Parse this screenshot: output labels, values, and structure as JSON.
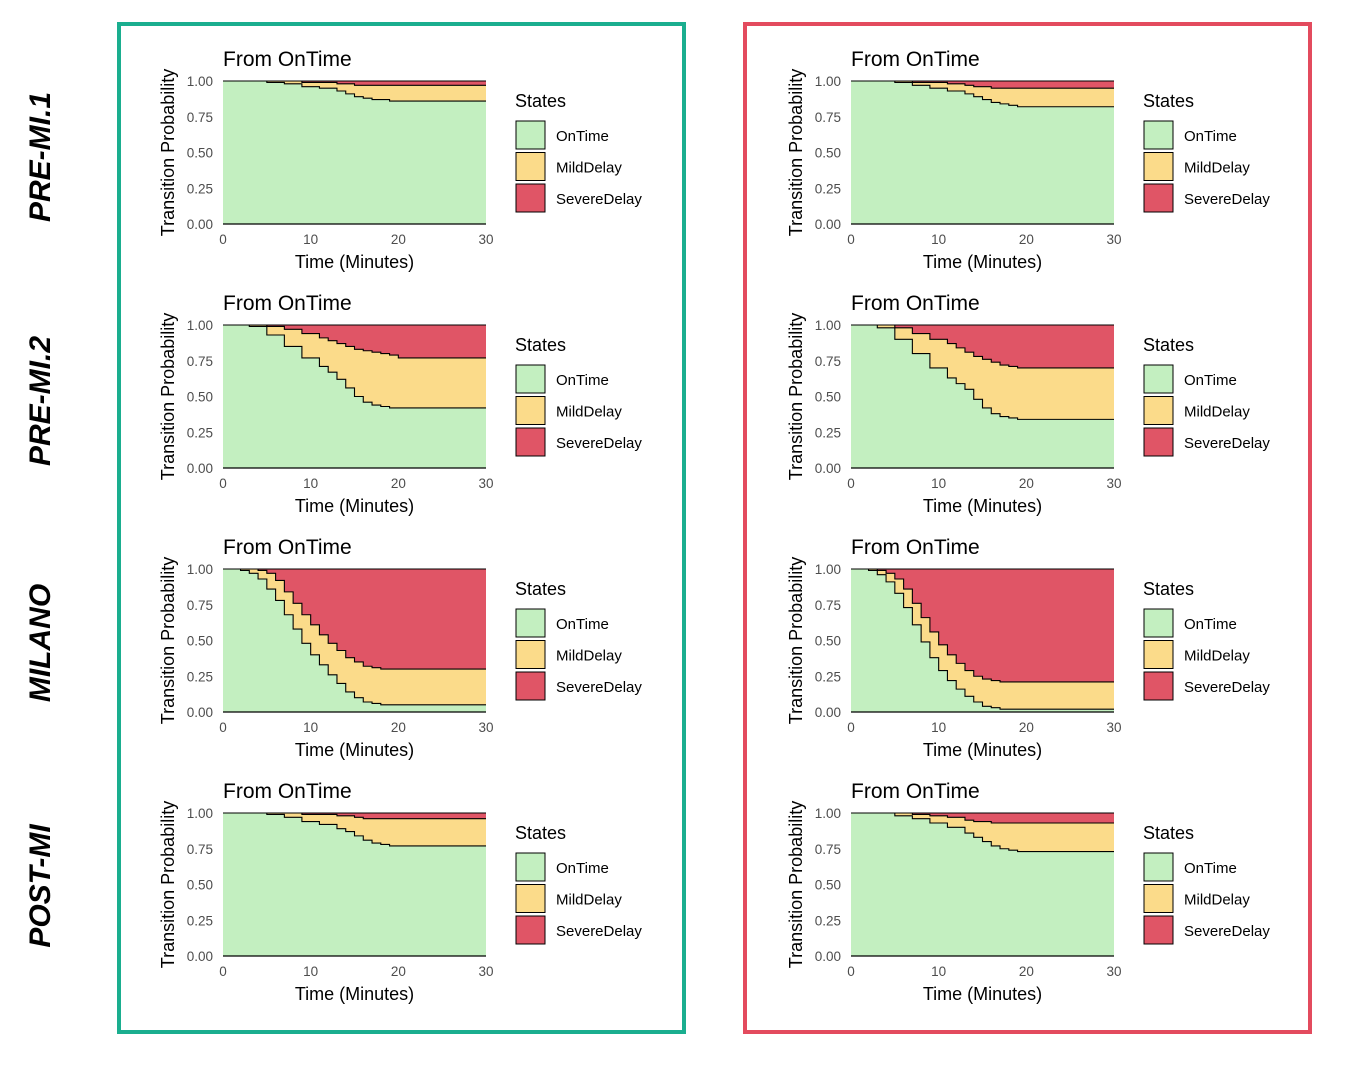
{
  "colors": {
    "OnTime": "#c3efc0",
    "MildDelay": "#fbdb8a",
    "SevereDelay": "#e05566",
    "left_frame": "#1aae8f",
    "right_frame": "#e34b5e"
  },
  "row_labels": [
    "PRE-MI.1",
    "PRE-MI.2",
    "MILANO",
    "POST-MI"
  ],
  "chart_data": [
    {
      "type": "area",
      "panel": "left-1",
      "title": "From OnTime",
      "xlabel": "Time (Minutes)",
      "ylabel": "Transition Probability",
      "xlim": [
        0,
        30
      ],
      "ylim": [
        0,
        1
      ],
      "xticks": [
        "0",
        "10",
        "20",
        "30"
      ],
      "yticks": [
        "0.00",
        "0.25",
        "0.50",
        "0.75",
        "1.00"
      ],
      "legend_title": "States",
      "legend_position": "right",
      "x": [
        0,
        3,
        5,
        7,
        9,
        11,
        13,
        14,
        15,
        16,
        17,
        18,
        19,
        20,
        25,
        30
      ],
      "series": [
        {
          "name": "OnTime",
          "values": [
            1.0,
            1.0,
            0.99,
            0.98,
            0.96,
            0.95,
            0.93,
            0.91,
            0.89,
            0.88,
            0.87,
            0.87,
            0.86,
            0.86,
            0.86,
            0.86
          ]
        },
        {
          "name": "MildDelay",
          "values": [
            0.0,
            0.0,
            0.01,
            0.02,
            0.03,
            0.04,
            0.05,
            0.07,
            0.08,
            0.09,
            0.1,
            0.1,
            0.11,
            0.11,
            0.11,
            0.11
          ]
        },
        {
          "name": "SevereDelay",
          "values": [
            0.0,
            0.0,
            0.0,
            0.0,
            0.01,
            0.01,
            0.02,
            0.02,
            0.03,
            0.03,
            0.03,
            0.03,
            0.03,
            0.03,
            0.03,
            0.03
          ]
        }
      ]
    },
    {
      "type": "area",
      "panel": "right-1",
      "title": "From OnTime",
      "xlabel": "Time (Minutes)",
      "ylabel": "Transition Probability",
      "xlim": [
        0,
        30
      ],
      "ylim": [
        0,
        1
      ],
      "xticks": [
        "0",
        "10",
        "20",
        "30"
      ],
      "yticks": [
        "0.00",
        "0.25",
        "0.50",
        "0.75",
        "1.00"
      ],
      "legend_title": "States",
      "legend_position": "right",
      "x": [
        0,
        3,
        5,
        7,
        9,
        11,
        13,
        14,
        15,
        16,
        17,
        18,
        19,
        20,
        25,
        30
      ],
      "series": [
        {
          "name": "OnTime",
          "values": [
            1.0,
            1.0,
            0.99,
            0.97,
            0.95,
            0.93,
            0.91,
            0.89,
            0.87,
            0.85,
            0.84,
            0.83,
            0.82,
            0.82,
            0.82,
            0.82
          ]
        },
        {
          "name": "MildDelay",
          "values": [
            0.0,
            0.0,
            0.01,
            0.02,
            0.04,
            0.05,
            0.06,
            0.07,
            0.09,
            0.1,
            0.11,
            0.12,
            0.13,
            0.13,
            0.13,
            0.13
          ]
        },
        {
          "name": "SevereDelay",
          "values": [
            0.0,
            0.0,
            0.0,
            0.01,
            0.01,
            0.02,
            0.03,
            0.04,
            0.04,
            0.05,
            0.05,
            0.05,
            0.05,
            0.05,
            0.05,
            0.05
          ]
        }
      ]
    },
    {
      "type": "area",
      "panel": "left-2",
      "title": "From OnTime",
      "xlabel": "Time (Minutes)",
      "ylabel": "Transition Probability",
      "xlim": [
        0,
        30
      ],
      "ylim": [
        0,
        1
      ],
      "xticks": [
        "0",
        "10",
        "20",
        "30"
      ],
      "yticks": [
        "0.00",
        "0.25",
        "0.50",
        "0.75",
        "1.00"
      ],
      "legend_title": "States",
      "legend_position": "right",
      "x": [
        0,
        3,
        5,
        7,
        9,
        11,
        12,
        13,
        14,
        15,
        16,
        17,
        18,
        19,
        20,
        25,
        30
      ],
      "series": [
        {
          "name": "OnTime",
          "values": [
            1.0,
            0.99,
            0.93,
            0.85,
            0.77,
            0.71,
            0.67,
            0.62,
            0.56,
            0.5,
            0.46,
            0.44,
            0.43,
            0.42,
            0.42,
            0.42,
            0.42
          ]
        },
        {
          "name": "MildDelay",
          "values": [
            0.0,
            0.01,
            0.06,
            0.12,
            0.17,
            0.2,
            0.22,
            0.25,
            0.29,
            0.33,
            0.36,
            0.37,
            0.37,
            0.37,
            0.35,
            0.35,
            0.35
          ]
        },
        {
          "name": "SevereDelay",
          "values": [
            0.0,
            0.0,
            0.01,
            0.03,
            0.06,
            0.09,
            0.11,
            0.13,
            0.15,
            0.17,
            0.18,
            0.19,
            0.2,
            0.21,
            0.23,
            0.23,
            0.23
          ]
        }
      ]
    },
    {
      "type": "area",
      "panel": "right-2",
      "title": "From OnTime",
      "xlabel": "Time (Minutes)",
      "ylabel": "Transition Probability",
      "xlim": [
        0,
        30
      ],
      "ylim": [
        0,
        1
      ],
      "xticks": [
        "0",
        "10",
        "20",
        "30"
      ],
      "yticks": [
        "0.00",
        "0.25",
        "0.50",
        "0.75",
        "1.00"
      ],
      "legend_title": "States",
      "legend_position": "right",
      "x": [
        0,
        3,
        5,
        7,
        9,
        11,
        12,
        13,
        14,
        15,
        16,
        17,
        18,
        19,
        20,
        25,
        30
      ],
      "series": [
        {
          "name": "OnTime",
          "values": [
            1.0,
            0.98,
            0.9,
            0.8,
            0.7,
            0.63,
            0.59,
            0.55,
            0.48,
            0.42,
            0.38,
            0.36,
            0.35,
            0.34,
            0.34,
            0.34,
            0.34
          ]
        },
        {
          "name": "MildDelay",
          "values": [
            0.0,
            0.02,
            0.08,
            0.14,
            0.2,
            0.24,
            0.25,
            0.26,
            0.3,
            0.34,
            0.36,
            0.36,
            0.36,
            0.36,
            0.36,
            0.36,
            0.36
          ]
        },
        {
          "name": "SevereDelay",
          "values": [
            0.0,
            0.0,
            0.02,
            0.06,
            0.1,
            0.13,
            0.16,
            0.19,
            0.22,
            0.24,
            0.26,
            0.28,
            0.29,
            0.3,
            0.3,
            0.3,
            0.3
          ]
        }
      ]
    },
    {
      "type": "area",
      "panel": "left-3",
      "title": "From OnTime",
      "xlabel": "Time (Minutes)",
      "ylabel": "Transition Probability",
      "xlim": [
        0,
        30
      ],
      "ylim": [
        0,
        1
      ],
      "xticks": [
        "0",
        "10",
        "20",
        "30"
      ],
      "yticks": [
        "0.00",
        "0.25",
        "0.50",
        "0.75",
        "1.00"
      ],
      "legend_title": "States",
      "legend_position": "right",
      "x": [
        0,
        2,
        3,
        4,
        5,
        6,
        7,
        8,
        9,
        10,
        11,
        12,
        13,
        14,
        15,
        16,
        17,
        18,
        20,
        25,
        30
      ],
      "series": [
        {
          "name": "OnTime",
          "values": [
            1.0,
            0.99,
            0.97,
            0.93,
            0.86,
            0.78,
            0.68,
            0.58,
            0.48,
            0.4,
            0.33,
            0.26,
            0.2,
            0.14,
            0.1,
            0.07,
            0.06,
            0.05,
            0.05,
            0.05,
            0.05
          ]
        },
        {
          "name": "MildDelay",
          "values": [
            0.0,
            0.01,
            0.03,
            0.06,
            0.11,
            0.14,
            0.16,
            0.18,
            0.2,
            0.21,
            0.21,
            0.22,
            0.23,
            0.24,
            0.25,
            0.25,
            0.25,
            0.25,
            0.25,
            0.25,
            0.25
          ]
        },
        {
          "name": "SevereDelay",
          "values": [
            0.0,
            0.0,
            0.0,
            0.01,
            0.03,
            0.08,
            0.16,
            0.24,
            0.32,
            0.39,
            0.46,
            0.52,
            0.57,
            0.62,
            0.65,
            0.68,
            0.69,
            0.7,
            0.7,
            0.7,
            0.7
          ]
        }
      ]
    },
    {
      "type": "area",
      "panel": "right-3",
      "title": "From OnTime",
      "xlabel": "Time (Minutes)",
      "ylabel": "Transition Probability",
      "xlim": [
        0,
        30
      ],
      "ylim": [
        0,
        1
      ],
      "xticks": [
        "0",
        "10",
        "20",
        "30"
      ],
      "yticks": [
        "0.00",
        "0.25",
        "0.50",
        "0.75",
        "1.00"
      ],
      "legend_title": "States",
      "legend_position": "right",
      "x": [
        0,
        2,
        3,
        4,
        5,
        6,
        7,
        8,
        9,
        10,
        11,
        12,
        13,
        14,
        15,
        16,
        17,
        18,
        19,
        20,
        25,
        30
      ],
      "series": [
        {
          "name": "OnTime",
          "values": [
            1.0,
            0.99,
            0.96,
            0.91,
            0.83,
            0.73,
            0.61,
            0.49,
            0.38,
            0.29,
            0.22,
            0.16,
            0.11,
            0.07,
            0.04,
            0.03,
            0.02,
            0.02,
            0.02,
            0.02,
            0.02,
            0.02
          ]
        },
        {
          "name": "MildDelay",
          "values": [
            0.0,
            0.01,
            0.03,
            0.06,
            0.1,
            0.13,
            0.15,
            0.17,
            0.18,
            0.18,
            0.18,
            0.18,
            0.18,
            0.18,
            0.19,
            0.19,
            0.19,
            0.19,
            0.19,
            0.19,
            0.19,
            0.19
          ]
        },
        {
          "name": "SevereDelay",
          "values": [
            0.0,
            0.0,
            0.01,
            0.03,
            0.07,
            0.14,
            0.24,
            0.34,
            0.44,
            0.53,
            0.6,
            0.66,
            0.71,
            0.75,
            0.77,
            0.78,
            0.79,
            0.79,
            0.79,
            0.79,
            0.79,
            0.79
          ]
        }
      ]
    },
    {
      "type": "area",
      "panel": "left-4",
      "title": "From OnTime",
      "xlabel": "Time (Minutes)",
      "ylabel": "Transition Probability",
      "xlim": [
        0,
        30
      ],
      "ylim": [
        0,
        1
      ],
      "xticks": [
        "0",
        "10",
        "20",
        "30"
      ],
      "yticks": [
        "0.00",
        "0.25",
        "0.50",
        "0.75",
        "1.00"
      ],
      "legend_title": "States",
      "legend_position": "right",
      "x": [
        0,
        3,
        5,
        7,
        9,
        11,
        13,
        14,
        15,
        16,
        17,
        18,
        19,
        20,
        25,
        30
      ],
      "series": [
        {
          "name": "OnTime",
          "values": [
            1.0,
            1.0,
            0.99,
            0.97,
            0.94,
            0.92,
            0.89,
            0.87,
            0.84,
            0.81,
            0.79,
            0.78,
            0.77,
            0.77,
            0.77,
            0.77
          ]
        },
        {
          "name": "MildDelay",
          "values": [
            0.0,
            0.0,
            0.01,
            0.03,
            0.05,
            0.07,
            0.09,
            0.11,
            0.13,
            0.15,
            0.17,
            0.18,
            0.19,
            0.19,
            0.19,
            0.19
          ]
        },
        {
          "name": "SevereDelay",
          "values": [
            0.0,
            0.0,
            0.0,
            0.0,
            0.01,
            0.01,
            0.02,
            0.02,
            0.03,
            0.04,
            0.04,
            0.04,
            0.04,
            0.04,
            0.04,
            0.04
          ]
        }
      ]
    },
    {
      "type": "area",
      "panel": "right-4",
      "title": "From OnTime",
      "xlabel": "Time (Minutes)",
      "ylabel": "Transition Probability",
      "xlim": [
        0,
        30
      ],
      "ylim": [
        0,
        1
      ],
      "xticks": [
        "0",
        "10",
        "20",
        "30"
      ],
      "yticks": [
        "0.00",
        "0.25",
        "0.50",
        "0.75",
        "1.00"
      ],
      "legend_title": "States",
      "legend_position": "right",
      "x": [
        0,
        3,
        5,
        7,
        9,
        11,
        13,
        14,
        15,
        16,
        17,
        18,
        19,
        20,
        25,
        30
      ],
      "series": [
        {
          "name": "OnTime",
          "values": [
            1.0,
            1.0,
            0.98,
            0.96,
            0.93,
            0.9,
            0.86,
            0.83,
            0.8,
            0.77,
            0.75,
            0.74,
            0.73,
            0.73,
            0.73,
            0.73
          ]
        },
        {
          "name": "MildDelay",
          "values": [
            0.0,
            0.0,
            0.02,
            0.03,
            0.05,
            0.07,
            0.09,
            0.11,
            0.14,
            0.16,
            0.18,
            0.19,
            0.2,
            0.2,
            0.2,
            0.2
          ]
        },
        {
          "name": "SevereDelay",
          "values": [
            0.0,
            0.0,
            0.0,
            0.01,
            0.02,
            0.03,
            0.05,
            0.06,
            0.06,
            0.07,
            0.07,
            0.07,
            0.07,
            0.07,
            0.07,
            0.07
          ]
        }
      ]
    }
  ]
}
